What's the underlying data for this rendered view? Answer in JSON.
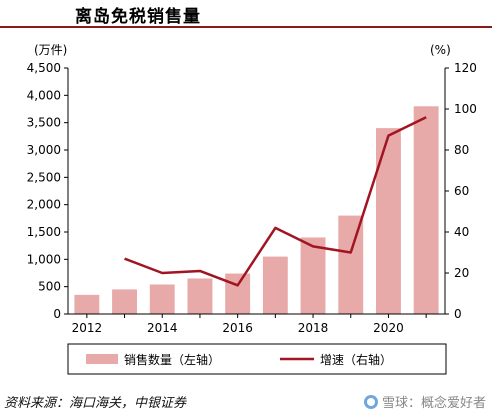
{
  "title": "离岛免税销售量",
  "source": "资料来源：海口海关，中银证券",
  "watermark": "雪球：概念爱好者",
  "chart_data": {
    "type": "bar+line",
    "title": "离岛免税销售量",
    "left_unit": "(万件)",
    "right_unit": "(%)",
    "x": [
      2012,
      2013,
      2014,
      2015,
      2016,
      2017,
      2018,
      2019,
      2020,
      2021
    ],
    "x_tick_labels": [
      "2012",
      "2014",
      "2016",
      "2018",
      "2020"
    ],
    "left_ylim": [
      0,
      4500
    ],
    "left_ticks": [
      "0",
      "500",
      "1,000",
      "1,500",
      "2,000",
      "2,500",
      "3,000",
      "3,500",
      "4,000",
      "4,500"
    ],
    "right_ylim": [
      0,
      120
    ],
    "right_ticks": [
      "0",
      "20",
      "40",
      "60",
      "80",
      "100",
      "120"
    ],
    "series": [
      {
        "name": "销售数量（左轴）",
        "type": "bar",
        "axis": "left",
        "color": "#e8a9a9",
        "values": [
          350,
          450,
          540,
          650,
          740,
          1050,
          1400,
          1800,
          3400,
          3800
        ]
      },
      {
        "name": "增速（右轴）",
        "type": "line",
        "axis": "right",
        "color": "#a01521",
        "values": [
          null,
          27,
          20,
          21,
          14,
          42,
          33,
          30,
          87,
          96
        ]
      }
    ],
    "grid": false,
    "legend": "bottom"
  }
}
